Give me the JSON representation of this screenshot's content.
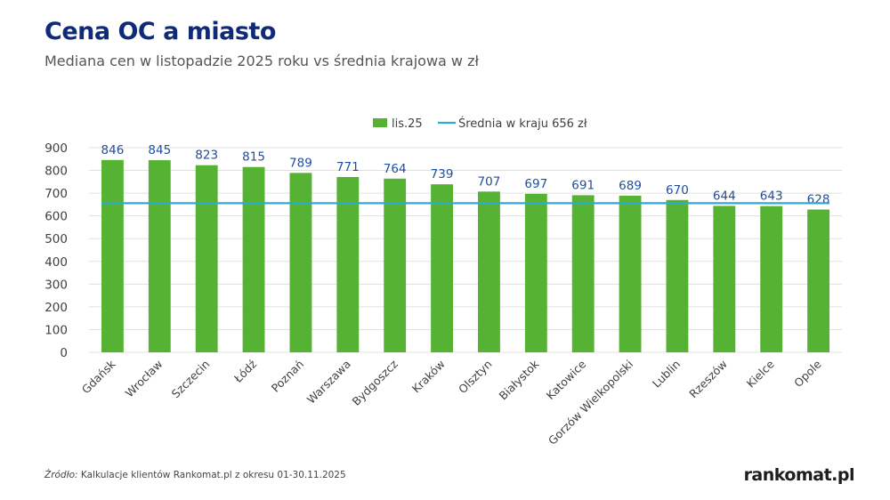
{
  "header": {
    "title": "Cena OC a miasto",
    "subtitle": "Mediana cen w listopadzie 2025 roku vs średnia krajowa w zł"
  },
  "footer": {
    "source_prefix": "Źródło:",
    "source_text": " Kalkulacje klientów Rankomat.pl z okresu 01-30.11.2025",
    "logo": "rankomat.pl"
  },
  "colors": {
    "bar": "#56b232",
    "line": "#2eaad4",
    "label": "#1f4e9e",
    "axis_text": "#404040",
    "grid": "#e0e0e0"
  },
  "chart_data": {
    "type": "bar",
    "categories": [
      "Gdańsk",
      "Wrocław",
      "Szczecin",
      "Łódź",
      "Poznań",
      "Warszawa",
      "Bydgoszcz",
      "Kraków",
      "Olsztyn",
      "Białystok",
      "Katowice",
      "Gorzów Wielkopolski",
      "Lublin",
      "Rzeszów",
      "Kielce",
      "Opole"
    ],
    "series": [
      {
        "name": "lis.25",
        "values": [
          846,
          845,
          823,
          815,
          789,
          771,
          764,
          739,
          707,
          697,
          691,
          689,
          670,
          644,
          643,
          628
        ]
      }
    ],
    "reference_line": {
      "name": "Średnia w kraju 656 zł",
      "value": 656
    },
    "ylim": [
      0,
      900
    ],
    "yticks": [
      0,
      100,
      200,
      300,
      400,
      500,
      600,
      700,
      800,
      900
    ],
    "grid": true,
    "legend_position": "top-center",
    "data_labels": true
  }
}
